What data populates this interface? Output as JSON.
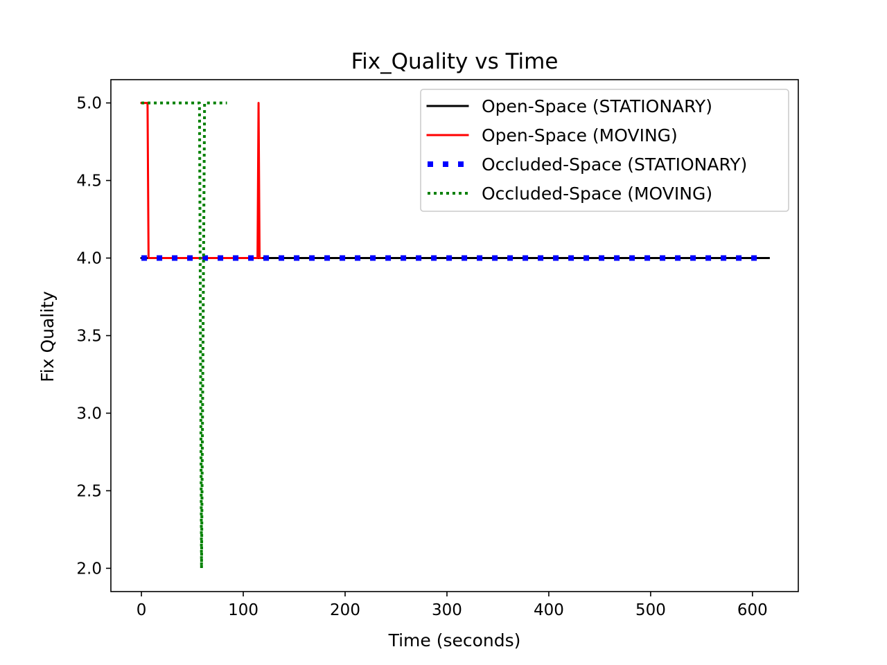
{
  "chart_data": {
    "type": "line",
    "title": "Fix_Quality vs Time",
    "xlabel": "Time (seconds)",
    "ylabel": "Fix Quality",
    "xlim": [
      -30,
      645
    ],
    "ylim": [
      1.85,
      5.15
    ],
    "xticks": [
      0,
      100,
      200,
      300,
      400,
      500,
      600
    ],
    "yticks": [
      2.0,
      2.5,
      3.0,
      3.5,
      4.0,
      4.5,
      5.0
    ],
    "xtick_labels": [
      "0",
      "100",
      "200",
      "300",
      "400",
      "500",
      "600"
    ],
    "ytick_labels": [
      "2.0",
      "2.5",
      "3.0",
      "3.5",
      "4.0",
      "4.5",
      "5.0"
    ],
    "grid": false,
    "legend_position": "top-right",
    "series": [
      {
        "name": "Open-Space (STATIONARY)",
        "color": "#000000",
        "style": "solid",
        "x": [
          0,
          616
        ],
        "y": [
          4,
          4
        ]
      },
      {
        "name": "Open-Space (MOVING)",
        "color": "#ff0000",
        "style": "solid",
        "x": [
          0,
          6,
          7,
          114,
          115,
          116,
          118
        ],
        "y": [
          5,
          5,
          4,
          4,
          5,
          4,
          4
        ]
      },
      {
        "name": "Occluded-Space (STATIONARY)",
        "color": "#0000ff",
        "style": "dotted-thick",
        "x": [
          0,
          606
        ],
        "y": [
          4,
          4
        ]
      },
      {
        "name": "Occluded-Space (MOVING)",
        "color": "#008000",
        "style": "dotted",
        "x": [
          0,
          57,
          59,
          62,
          84
        ],
        "y": [
          5,
          5,
          2,
          5,
          5
        ]
      }
    ]
  }
}
